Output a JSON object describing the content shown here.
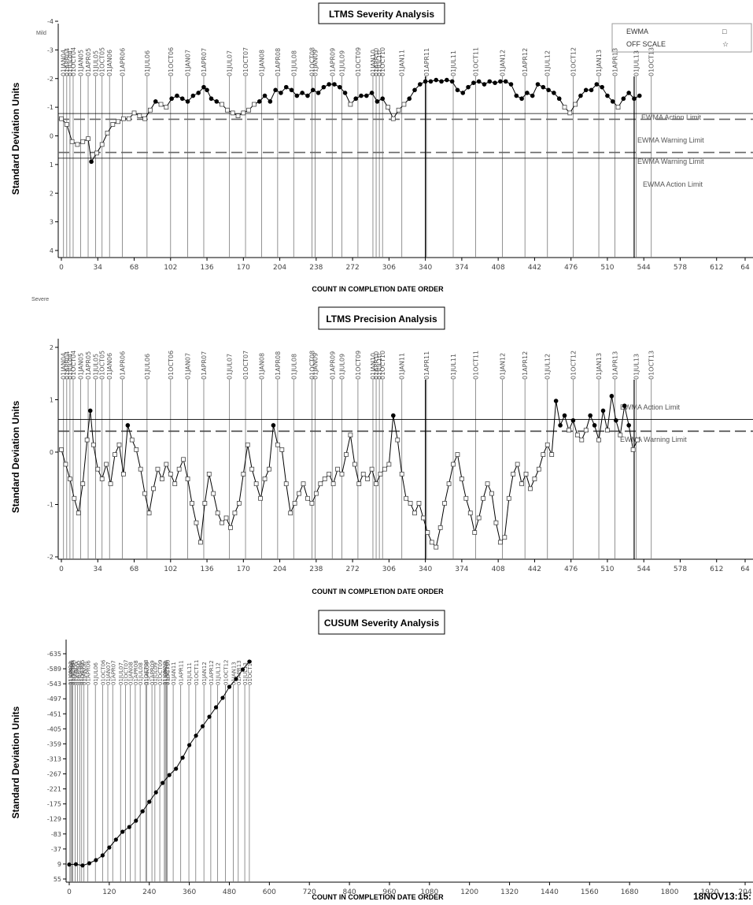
{
  "chart_data": [
    {
      "type": "line",
      "title": "LTMS Severity Analysis",
      "xlabel": "COUNT IN COMPLETION DATE ORDER",
      "ylabel": "Standard Deviation Units",
      "corner_label": "Mild",
      "x_ticks": [
        0,
        34,
        68,
        102,
        136,
        170,
        204,
        238,
        272,
        306,
        340,
        374,
        408,
        442,
        476,
        510,
        544,
        578,
        612,
        "64"
      ],
      "y_ticks": [
        "-4",
        "-3",
        "-2",
        "-1",
        "0",
        "1",
        "2",
        "3",
        "4"
      ],
      "xlim": [
        0,
        646
      ],
      "ylim": [
        4,
        -4
      ],
      "legend": {
        "position": "top-right",
        "entries": [
          {
            "label": "EWMA",
            "symbol": "□"
          },
          {
            "label": "OFF SCALE",
            "symbol": "☆"
          }
        ]
      },
      "limit_labels": [
        "EWMA Action Limit",
        "EWMA Warning Limit",
        "EWMA Warning Limit",
        "EWMA Action Limit"
      ],
      "limits": {
        "action": [
          -0.78,
          0.78
        ],
        "warning": [
          -0.58,
          0.58
        ]
      },
      "date_labels": [
        {
          "x": 2,
          "label": "01JAN04"
        },
        {
          "x": 5,
          "label": "01APR04"
        },
        {
          "x": 8,
          "label": "01JUL04"
        },
        {
          "x": 11,
          "label": "01OCT04"
        },
        {
          "x": 18,
          "label": "01JAN05"
        },
        {
          "x": 25,
          "label": "01APR05"
        },
        {
          "x": 32,
          "label": "01JUL05"
        },
        {
          "x": 38,
          "label": "01OCT05"
        },
        {
          "x": 45,
          "label": "01JAN06"
        },
        {
          "x": 57,
          "label": "01APR06"
        },
        {
          "x": 80,
          "label": "01JUL06"
        },
        {
          "x": 102,
          "label": "01OCT06"
        },
        {
          "x": 118,
          "label": "01JAN07"
        },
        {
          "x": 133,
          "label": "01APR07"
        },
        {
          "x": 157,
          "label": "01JUL07"
        },
        {
          "x": 172,
          "label": "01OCT07"
        },
        {
          "x": 187,
          "label": "01JAN08"
        },
        {
          "x": 202,
          "label": "01APR08"
        },
        {
          "x": 217,
          "label": "01JUL08"
        },
        {
          "x": 234,
          "label": "01OCT08"
        },
        {
          "x": 237,
          "label": "01JAN09"
        },
        {
          "x": 253,
          "label": "01APR09"
        },
        {
          "x": 262,
          "label": "01JUL09"
        },
        {
          "x": 277,
          "label": "01OCT09"
        },
        {
          "x": 291,
          "label": "01JAN10"
        },
        {
          "x": 294,
          "label": "01APR10"
        },
        {
          "x": 297,
          "label": "01JUL10"
        },
        {
          "x": 300,
          "label": "01OCT10"
        },
        {
          "x": 318,
          "label": "01JAN11"
        },
        {
          "x": 341,
          "label": "01APR11"
        },
        {
          "x": 366,
          "label": "01JUL11"
        },
        {
          "x": 387,
          "label": "01OCT11"
        },
        {
          "x": 412,
          "label": "01JAN12"
        },
        {
          "x": 433,
          "label": "01APR12"
        },
        {
          "x": 454,
          "label": "01JUL12"
        },
        {
          "x": 478,
          "label": "01OCT12"
        },
        {
          "x": 502,
          "label": "01JAN13"
        },
        {
          "x": 517,
          "label": "01APR13"
        },
        {
          "x": 537,
          "label": "01JUL13"
        },
        {
          "x": 551,
          "label": "01OCT13"
        }
      ],
      "series": [
        {
          "values_x": [
            0,
            5,
            10,
            15,
            20,
            25,
            28,
            33,
            38,
            43,
            48,
            53,
            58,
            63,
            68,
            73,
            78,
            83,
            88,
            93,
            98,
            103,
            108,
            113,
            118,
            123,
            128,
            133,
            136,
            140,
            145,
            150,
            155,
            160,
            165,
            170,
            175,
            180,
            185,
            190,
            195,
            200,
            205,
            210,
            215,
            220,
            225,
            230,
            235,
            240,
            245,
            250,
            255,
            260,
            265,
            270,
            275,
            280,
            285,
            290,
            295,
            300,
            305,
            310,
            315,
            320,
            325,
            330,
            335,
            340,
            345,
            350,
            355,
            360,
            365,
            370,
            375,
            380,
            385,
            390,
            395,
            400,
            405,
            410,
            415,
            420,
            425,
            430,
            435,
            440,
            445,
            450,
            455,
            460,
            465,
            470,
            475,
            480,
            485,
            490,
            495,
            500,
            505,
            510,
            515,
            520,
            525,
            530,
            535,
            540
          ],
          "values": [
            -0.6,
            -0.4,
            0.2,
            0.3,
            0.2,
            0.1,
            0.9,
            0.6,
            0.3,
            -0.1,
            -0.4,
            -0.5,
            -0.6,
            -0.6,
            -0.8,
            -0.7,
            -0.6,
            -0.9,
            -1.2,
            -1.1,
            -1.0,
            -1.3,
            -1.4,
            -1.3,
            -1.2,
            -1.4,
            -1.5,
            -1.7,
            -1.6,
            -1.3,
            -1.2,
            -1.1,
            -0.9,
            -0.8,
            -0.7,
            -0.8,
            -0.9,
            -1.1,
            -1.2,
            -1.4,
            -1.2,
            -1.6,
            -1.5,
            -1.7,
            -1.6,
            -1.4,
            -1.5,
            -1.4,
            -1.6,
            -1.5,
            -1.7,
            -1.8,
            -1.8,
            -1.7,
            -1.5,
            -1.1,
            -1.3,
            -1.4,
            -1.4,
            -1.5,
            -1.2,
            -1.3,
            -1.0,
            -0.6,
            -0.9,
            -1.1,
            -1.3,
            -1.6,
            -1.8,
            -1.9,
            -1.9,
            -1.95,
            -1.9,
            -1.95,
            -1.9,
            -1.6,
            -1.5,
            -1.7,
            -1.85,
            -1.9,
            -1.8,
            -1.9,
            -1.85,
            -1.9,
            -1.9,
            -1.8,
            -1.4,
            -1.3,
            -1.5,
            -1.4,
            -1.8,
            -1.7,
            -1.6,
            -1.5,
            -1.3,
            -1.0,
            -0.8,
            -1.1,
            -1.4,
            -1.6,
            -1.6,
            -1.8,
            -1.7,
            -1.4,
            -1.2,
            -1.0,
            -1.3,
            -1.5,
            -1.3,
            -1.4
          ]
        }
      ],
      "marker_x": 340,
      "marker_x2": 535
    },
    {
      "type": "line",
      "title": "LTMS Precision Analysis",
      "xlabel": "COUNT IN COMPLETION DATE ORDER",
      "ylabel": "Standard Deviation Units",
      "corner_label": "Severe",
      "x_ticks": [
        0,
        34,
        68,
        102,
        136,
        170,
        204,
        238,
        272,
        306,
        340,
        374,
        408,
        442,
        476,
        510,
        544,
        578,
        612,
        "64"
      ],
      "y_ticks": [
        "2",
        "1",
        "0",
        "-1",
        "-2"
      ],
      "xlim": [
        0,
        646
      ],
      "ylim": [
        -2.1,
        2.2
      ],
      "limit_labels": [
        "EWMA Action Limit",
        "EWMA Warning Limit"
      ],
      "limits": {
        "action": 0.72,
        "warning": 0.48
      },
      "date_labels_ref": 0,
      "series": [
        {
          "values_x": [
            0,
            4,
            8,
            12,
            16,
            20,
            24,
            27,
            30,
            34,
            38,
            42,
            46,
            50,
            54,
            58,
            62,
            66,
            70,
            74,
            78,
            82,
            86,
            90,
            94,
            98,
            102,
            106,
            110,
            114,
            118,
            122,
            126,
            130,
            134,
            138,
            142,
            146,
            150,
            154,
            158,
            162,
            166,
            170,
            174,
            178,
            182,
            186,
            190,
            194,
            198,
            202,
            206,
            210,
            214,
            218,
            222,
            226,
            230,
            234,
            238,
            242,
            246,
            250,
            254,
            258,
            262,
            266,
            270,
            274,
            278,
            282,
            286,
            290,
            294,
            298,
            302,
            306,
            310,
            314,
            318,
            322,
            326,
            330,
            334,
            338,
            342,
            346,
            350,
            354,
            358,
            362,
            366,
            370,
            374,
            378,
            382,
            386,
            390,
            394,
            398,
            402,
            406,
            410,
            414,
            418,
            422,
            426,
            430,
            434,
            438,
            442,
            446,
            450,
            454,
            458,
            462,
            466,
            470,
            474,
            478,
            482,
            486,
            490,
            494,
            498,
            502,
            506,
            510,
            514,
            518,
            522,
            526,
            530,
            534,
            538
          ],
          "values": [
            0.1,
            -0.2,
            -0.5,
            -0.9,
            -1.2,
            -0.6,
            0.3,
            0.9,
            0.2,
            -0.3,
            -0.5,
            -0.2,
            -0.6,
            0.0,
            0.2,
            -0.4,
            0.6,
            0.3,
            0.1,
            -0.3,
            -0.8,
            -1.2,
            -0.7,
            -0.3,
            -0.5,
            -0.2,
            -0.4,
            -0.6,
            -0.3,
            -0.1,
            -0.5,
            -1.0,
            -1.4,
            -1.8,
            -1.0,
            -0.4,
            -0.8,
            -1.2,
            -1.4,
            -1.3,
            -1.5,
            -1.2,
            -1.0,
            -0.4,
            0.2,
            -0.3,
            -0.6,
            -0.9,
            -0.5,
            -0.3,
            0.6,
            0.2,
            0.1,
            -0.6,
            -1.2,
            -1.0,
            -0.8,
            -0.6,
            -0.9,
            -1.0,
            -0.8,
            -0.6,
            -0.5,
            -0.4,
            -0.6,
            -0.3,
            -0.4,
            0.0,
            0.4,
            -0.2,
            -0.6,
            -0.4,
            -0.5,
            -0.3,
            -0.6,
            -0.4,
            -0.3,
            -0.2,
            0.8,
            0.3,
            -0.4,
            -0.9,
            -1.0,
            -1.2,
            -1.0,
            -1.3,
            -1.6,
            -1.8,
            -1.9,
            -1.5,
            -1.0,
            -0.6,
            -0.2,
            0.0,
            -0.5,
            -0.9,
            -1.2,
            -1.6,
            -1.3,
            -0.9,
            -0.6,
            -0.8,
            -1.4,
            -1.8,
            -1.7,
            -0.9,
            -0.4,
            -0.2,
            -0.6,
            -0.4,
            -0.7,
            -0.5,
            -0.3,
            0.0,
            0.2,
            0.0,
            1.1,
            0.6,
            0.8,
            0.5,
            0.7,
            0.4,
            0.3,
            0.5,
            0.8,
            0.6,
            0.3,
            0.9,
            0.5,
            1.2,
            0.7,
            0.4,
            1.0,
            0.6,
            0.1,
            0.3
          ]
        }
      ],
      "marker_x": 340,
      "marker_x2": 535
    },
    {
      "type": "line",
      "title": "CUSUM Severity Analysis",
      "xlabel": "COUNT IN COMPLETION DATE ORDER",
      "ylabel": "Standard Deviation Units",
      "x_ticks": [
        0,
        120,
        240,
        360,
        480,
        600,
        720,
        840,
        960,
        1080,
        1200,
        1320,
        1440,
        1560,
        1680,
        1800,
        1920,
        "204"
      ],
      "y_ticks": [
        "-635",
        "-589",
        "-543",
        "-497",
        "-451",
        "-405",
        "-359",
        "-313",
        "-267",
        "-221",
        "-175",
        "-129",
        "-83",
        "-37",
        "9",
        "55"
      ],
      "xlim": [
        0,
        2050
      ],
      "ylim": [
        55,
        -660
      ],
      "series": [
        {
          "values_x": [
            0,
            20,
            40,
            60,
            80,
            100,
            120,
            140,
            160,
            180,
            200,
            220,
            240,
            260,
            280,
            300,
            320,
            340,
            360,
            380,
            400,
            420,
            440,
            460,
            480,
            500,
            520,
            540
          ],
          "values": [
            9,
            8,
            12,
            5,
            -5,
            -20,
            -45,
            -70,
            -95,
            -110,
            -130,
            -160,
            -190,
            -220,
            -250,
            -275,
            -295,
            -330,
            -370,
            -400,
            -430,
            -460,
            -490,
            -520,
            -555,
            -580,
            -610,
            -635
          ]
        }
      ]
    }
  ],
  "timestamp": "18NOV13:15:"
}
